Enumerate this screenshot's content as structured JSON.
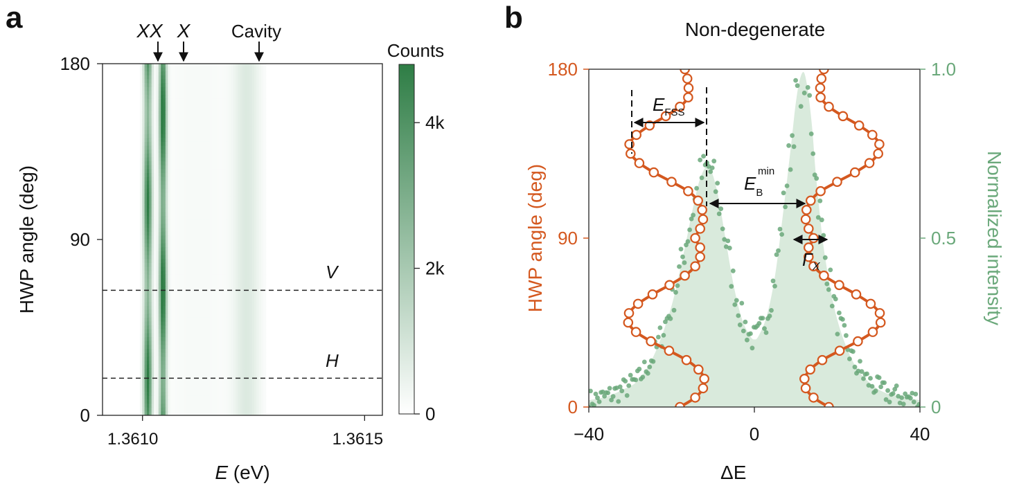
{
  "chart_data": [
    {
      "panel_label": "a",
      "type": "heatmap",
      "xlabel_symbol": "E",
      "xlabel_unit": " (eV)",
      "ylabel": "HWP angle (deg)",
      "xlim": [
        1.36091,
        1.36154
      ],
      "ylim": [
        0,
        180
      ],
      "x_tick_values": [
        1.361,
        1.3615
      ],
      "x_tick_labels": [
        "1.3610",
        "1.3615"
      ],
      "y_ticks": [
        0,
        90,
        180
      ],
      "y_tick_labels": [
        "0",
        "90",
        "180"
      ],
      "colorbar": {
        "title": "Counts",
        "range": [
          0,
          4800
        ],
        "ticks": [
          0,
          2000,
          4000
        ],
        "tick_labels": [
          "0",
          "2k",
          "4k"
        ],
        "color_low": "#ffffff",
        "color_high": "#2e7d45"
      },
      "peaks": [
        {
          "label": "XX",
          "energy": 1.361012
        },
        {
          "label": "X",
          "energy": 1.361046
        },
        {
          "label": "Cavity",
          "energy": 1.361235
        }
      ],
      "polarization_lines": [
        {
          "label": "V",
          "angle": 64
        },
        {
          "label": "H",
          "angle": 19
        }
      ]
    },
    {
      "panel_label": "b",
      "type": "line+scatter",
      "title": "Non-degenerate",
      "xlabel": "ΔE",
      "ylabel_left": "HWP angle (deg)",
      "ylabel_right": "Normalized intensity",
      "xlim": [
        -40,
        40
      ],
      "ylim_left": [
        0,
        180
      ],
      "ylim_right": [
        0,
        1.0
      ],
      "x_ticks": [
        -40,
        0,
        40
      ],
      "x_tick_labels": [
        "−40",
        "0",
        "40"
      ],
      "y_left_ticks": [
        0,
        90,
        180
      ],
      "y_left_tick_labels": [
        "0",
        "90",
        "180"
      ],
      "y_right_ticks": [
        0,
        0.5,
        1.0
      ],
      "y_right_tick_labels": [
        "0",
        "0.5",
        "1.0"
      ],
      "colors": {
        "angle_fit": "#d4581f",
        "intensity": "#6aa87a",
        "intensity_fill": "#d9eadc"
      },
      "annotations": {
        "e_fss_main": "E",
        "e_fss_sub": "FSS",
        "e_b_main": "E",
        "e_b_sub": "B",
        "e_b_sup": "min",
        "gamma": "Γ",
        "gamma_sub": "X"
      },
      "series": [
        {
          "kind": "fit-curve",
          "branch": "left",
          "angle": [
            0,
            5,
            10,
            15,
            20,
            25,
            30,
            35,
            40,
            45,
            50,
            55,
            60,
            65,
            70,
            75,
            80,
            85,
            90,
            95,
            100,
            105,
            110,
            115,
            120,
            125,
            130,
            135,
            140,
            145,
            150,
            155,
            160,
            165,
            170,
            175,
            180
          ],
          "energy": [
            -18.0,
            -14.3,
            -12.4,
            -12.1,
            -13.5,
            -16.4,
            -20.6,
            -25.0,
            -28.6,
            -30.5,
            -30.3,
            -28.1,
            -24.6,
            -20.5,
            -16.8,
            -14.3,
            -13.1,
            -13.1,
            -14.3,
            -13.1,
            -12.4,
            -12.6,
            -13.6,
            -16.0,
            -20.0,
            -24.3,
            -27.8,
            -29.9,
            -30.2,
            -28.5,
            -25.3,
            -21.4,
            -18.0,
            -16.0,
            -15.9,
            -16.2,
            -16.8
          ]
        },
        {
          "kind": "fit-curve",
          "branch": "right",
          "angle": [
            0,
            5,
            10,
            15,
            20,
            25,
            30,
            35,
            40,
            45,
            50,
            55,
            60,
            65,
            70,
            75,
            80,
            85,
            90,
            95,
            100,
            105,
            110,
            115,
            120,
            125,
            130,
            135,
            140,
            145,
            150,
            155,
            160,
            165,
            170,
            175,
            180
          ],
          "energy": [
            18.0,
            14.3,
            12.4,
            12.1,
            13.5,
            16.4,
            20.6,
            25.0,
            28.6,
            30.5,
            30.3,
            28.1,
            24.6,
            20.5,
            16.8,
            14.3,
            13.1,
            13.1,
            14.3,
            13.1,
            12.4,
            12.6,
            13.6,
            16.0,
            20.0,
            24.3,
            27.8,
            29.9,
            30.2,
            28.5,
            25.3,
            21.4,
            18.0,
            16.0,
            15.9,
            16.2,
            16.8
          ]
        },
        {
          "kind": "intensity-fit",
          "energy": [
            -40,
            -36,
            -32,
            -28,
            -24,
            -20,
            -17,
            -15,
            -13,
            -11,
            -9,
            -7,
            -5,
            -3,
            -1,
            0,
            1,
            3,
            5,
            7,
            9,
            10,
            11,
            12,
            13,
            14,
            15,
            17,
            20,
            24,
            28,
            32,
            36,
            40
          ],
          "intensity": [
            0.02,
            0.03,
            0.05,
            0.08,
            0.16,
            0.3,
            0.46,
            0.58,
            0.68,
            0.71,
            0.64,
            0.5,
            0.36,
            0.26,
            0.21,
            0.2,
            0.21,
            0.27,
            0.39,
            0.58,
            0.79,
            0.9,
            0.97,
            0.99,
            0.93,
            0.82,
            0.67,
            0.45,
            0.26,
            0.13,
            0.07,
            0.04,
            0.03,
            0.02
          ]
        }
      ]
    }
  ]
}
